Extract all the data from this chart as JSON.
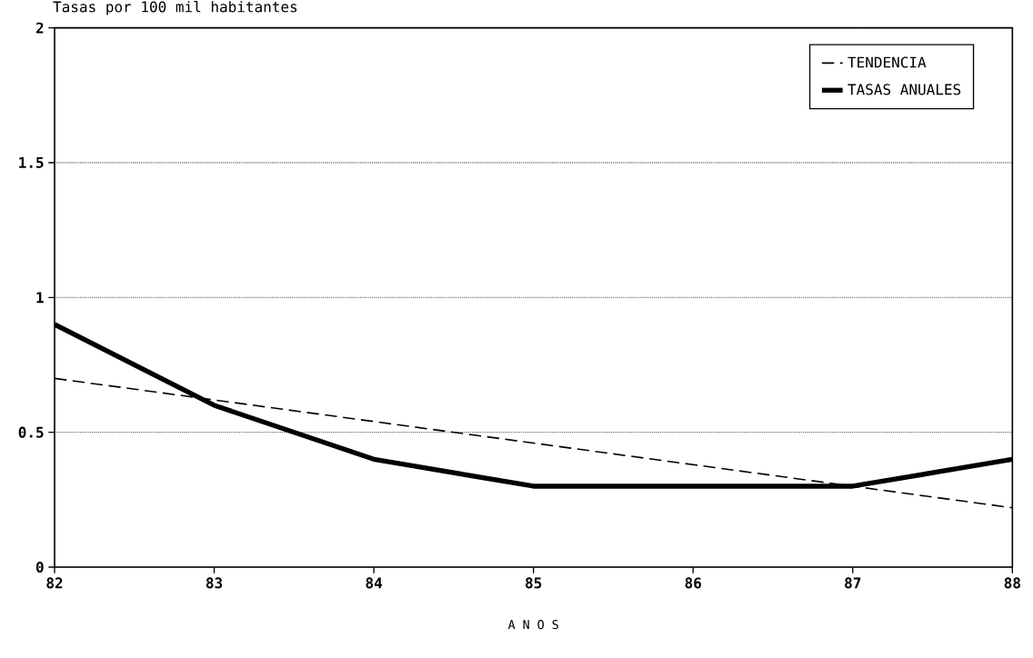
{
  "chart_data": {
    "type": "line",
    "ylabel": "Tasas por 100 mil habitantes",
    "xlabel": "A  N  O  S",
    "x": [
      82,
      83,
      84,
      85,
      86,
      87,
      88
    ],
    "series": [
      {
        "name": "TENDENCIA",
        "color": "#000000",
        "line_style": "dashed",
        "values": [
          0.7,
          0.62,
          0.54,
          0.46,
          0.38,
          0.3,
          0.22
        ]
      },
      {
        "name": "TASAS ANUALES",
        "color": "#000000",
        "line_style": "solid",
        "values": [
          0.9,
          0.6,
          0.4,
          0.3,
          0.3,
          0.3,
          0.4
        ]
      }
    ],
    "xlim": [
      82,
      88
    ],
    "ylim": [
      0,
      2
    ],
    "xticks": [
      82,
      83,
      84,
      85,
      86,
      87,
      88
    ],
    "yticks": [
      0,
      0.5,
      1,
      1.5,
      2
    ],
    "grid": "y",
    "legend": "top right",
    "marker": "none"
  }
}
